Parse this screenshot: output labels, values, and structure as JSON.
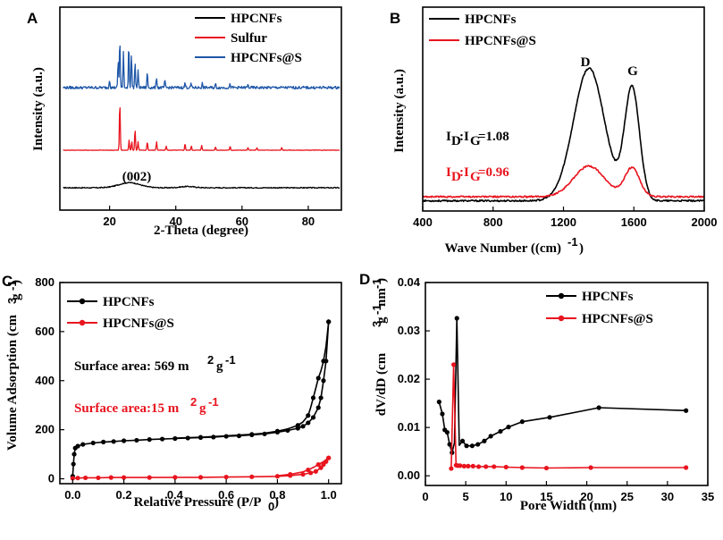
{
  "colors": {
    "black": "#000000",
    "red": "#e8141e",
    "blue": "#1f57a8"
  },
  "chart_data": [
    {
      "panel": "A",
      "type": "line",
      "xlabel": "2-Theta (degree)",
      "ylabel": "Intensity (a.u.)",
      "xlim": [
        5,
        90
      ],
      "x_ticks": [
        20,
        40,
        60,
        80
      ],
      "legend": [
        "HPCNFs",
        "Sulfur",
        "HPCNFs@S"
      ],
      "annotation": "(002)",
      "series": [
        {
          "name": "HPCNFs",
          "color": "#000000",
          "offset": 0,
          "peaks": [
            [
              26,
              6,
              4.5
            ],
            [
              43.5,
              1.5,
              3
            ]
          ],
          "noise": 1.2
        },
        {
          "name": "Sulfur",
          "color": "#e8141e",
          "offset": 42,
          "peaks": [
            [
              23.1,
              58
            ],
            [
              25.9,
              12
            ],
            [
              27.7,
              25
            ],
            [
              26.7,
              10
            ],
            [
              28.6,
              10
            ],
            [
              31.4,
              10
            ],
            [
              34.2,
              10
            ],
            [
              37.1,
              5
            ],
            [
              42.8,
              8
            ],
            [
              44.7,
              5
            ],
            [
              47.8,
              6
            ],
            [
              52,
              4
            ],
            [
              56.4,
              5
            ],
            [
              61.8,
              3
            ],
            [
              64.5,
              3
            ],
            [
              72,
              3
            ]
          ],
          "noise": 0.5
        },
        {
          "name": "HPCNFs@S",
          "color": "#1f57a8",
          "offset": 112,
          "peaks": [
            [
              23.1,
              58
            ],
            [
              25.8,
              52
            ],
            [
              22.6,
              32
            ],
            [
              24.2,
              42
            ],
            [
              26.6,
              40
            ],
            [
              27.7,
              30
            ],
            [
              28.6,
              20
            ],
            [
              31.4,
              18
            ],
            [
              34.2,
              12
            ],
            [
              20,
              10
            ],
            [
              36.7,
              8
            ],
            [
              42.8,
              6
            ],
            [
              44.6,
              5
            ],
            [
              48,
              5
            ],
            [
              52,
              4
            ],
            [
              56.4,
              4
            ],
            [
              61.8,
              3
            ]
          ],
          "noise": 3.2
        }
      ]
    },
    {
      "panel": "B",
      "type": "line",
      "xlabel": "Wave Number (cm-1)",
      "ylabel": "Intensity (a.u.)",
      "xlim": [
        400,
        2000
      ],
      "x_ticks": [
        400,
        800,
        1200,
        1600,
        2000
      ],
      "legend": [
        "HPCNFs",
        "HPCNFs@S"
      ],
      "D_label": "D",
      "G_label": "G",
      "ratio_black": "1.08",
      "ratio_red": "0.96",
      "series": [
        {
          "name": "HPCNFs",
          "color": "#000000",
          "D": [
            1345,
            130
          ],
          "G": [
            1590,
            110
          ]
        },
        {
          "name": "HPCNFs@S",
          "color": "#e8141e",
          "D": [
            1345,
            30
          ],
          "G": [
            1590,
            28
          ]
        }
      ]
    },
    {
      "panel": "C",
      "type": "line",
      "xlabel": "Relative Pressure (P/P0)",
      "ylabel": "Volume Adsorption",
      "xlim": [
        -0.05,
        1.05
      ],
      "ylim": [
        -20,
        800
      ],
      "x_ticks": [
        0.0,
        0.2,
        0.4,
        0.6,
        0.8,
        1.0
      ],
      "y_ticks": [
        0,
        200,
        400,
        600,
        800
      ],
      "legend": [
        "HPCNFs",
        "HPCNFs@S"
      ],
      "area_black": "Surface area: 569 m",
      "area_black_unit": "g",
      "area_red": "Surface area:15 m",
      "area_red_unit": "g",
      "series": [
        {
          "name": "HPCNFs adsorption",
          "color": "#000000",
          "x": [
            0.0,
            0.003,
            0.006,
            0.01,
            0.02,
            0.04,
            0.08,
            0.12,
            0.16,
            0.2,
            0.25,
            0.3,
            0.35,
            0.4,
            0.45,
            0.5,
            0.55,
            0.6,
            0.65,
            0.7,
            0.75,
            0.8,
            0.84,
            0.88,
            0.9,
            0.92,
            0.94,
            0.96,
            0.97,
            0.98,
            0.99,
            1.0
          ],
          "y": [
            10,
            60,
            100,
            125,
            133,
            140,
            146,
            150,
            152,
            155,
            157,
            160,
            162,
            164,
            166,
            168,
            170,
            173,
            175,
            179,
            183,
            190,
            197,
            206,
            214,
            228,
            250,
            290,
            330,
            400,
            480,
            640
          ]
        },
        {
          "name": "HPCNFs desorption",
          "color": "#000000",
          "x": [
            1.0,
            0.99,
            0.98,
            0.97,
            0.96,
            0.95,
            0.94,
            0.93,
            0.92,
            0.9,
            0.88,
            0.84,
            0.8,
            0.75,
            0.7,
            0.6,
            0.5,
            0.4
          ],
          "y": [
            640,
            540,
            480,
            440,
            410,
            370,
            330,
            290,
            258,
            232,
            218,
            203,
            194,
            186,
            181,
            175,
            169,
            166
          ]
        },
        {
          "name": "HPCNFs@S adsorption",
          "color": "#e8141e",
          "x": [
            0.0,
            0.02,
            0.05,
            0.1,
            0.15,
            0.2,
            0.3,
            0.4,
            0.5,
            0.6,
            0.7,
            0.8,
            0.85,
            0.9,
            0.93,
            0.95,
            0.97,
            0.98,
            0.99,
            1.0
          ],
          "y": [
            2,
            3,
            4,
            4,
            5,
            5,
            5,
            6,
            6,
            7,
            8,
            10,
            13,
            18,
            24,
            30,
            45,
            58,
            70,
            85
          ]
        },
        {
          "name": "HPCNFs@S desorption",
          "color": "#e8141e",
          "x": [
            1.0,
            0.98,
            0.96,
            0.94,
            0.92,
            0.9,
            0.85,
            0.8
          ],
          "y": [
            85,
            70,
            58,
            46,
            36,
            28,
            18,
            12
          ]
        }
      ]
    },
    {
      "panel": "D",
      "type": "line",
      "xlabel": "Pore Width (nm)",
      "ylabel": "dV/dD",
      "xlim": [
        0,
        35
      ],
      "ylim": [
        -0.002,
        0.04
      ],
      "x_ticks": [
        0,
        5,
        10,
        15,
        20,
        25,
        30,
        35
      ],
      "y_ticks": [
        0.0,
        0.01,
        0.02,
        0.03,
        0.04
      ],
      "y_tick_labels": [
        "0.00",
        "0.01",
        "0.02",
        "0.03",
        "0.04"
      ],
      "legend": [
        "HPCNFs",
        "HPCNFs@S"
      ],
      "series": [
        {
          "name": "HPCNFs",
          "color": "#000000",
          "x": [
            1.7,
            2.1,
            2.4,
            2.7,
            3.0,
            3.3,
            3.6,
            3.9,
            4.2,
            4.6,
            5.1,
            5.8,
            6.5,
            7.3,
            8.1,
            9.3,
            10.3,
            12,
            15.4,
            21.5,
            32.3
          ],
          "y": [
            0.0153,
            0.0128,
            0.0095,
            0.009,
            0.0065,
            0.0048,
            0.0068,
            0.0326,
            0.0063,
            0.0072,
            0.0062,
            0.0062,
            0.0065,
            0.0072,
            0.0082,
            0.0092,
            0.0101,
            0.0112,
            0.0121,
            0.0141,
            0.0135
          ],
          "markers": [
            0,
            1,
            2,
            3,
            4,
            5,
            7,
            9,
            10,
            11,
            12,
            13,
            14,
            15,
            16,
            17,
            18,
            19,
            20
          ]
        },
        {
          "name": "HPCNFs@S",
          "color": "#e8141e",
          "x": [
            3.2,
            3.5,
            3.8,
            4.0,
            4.3,
            4.8,
            5.3,
            5.9,
            6.6,
            7.5,
            8.5,
            10,
            12,
            15,
            20.5,
            32.3
          ],
          "y": [
            0.0015,
            0.023,
            0.0022,
            0.0021,
            0.0021,
            0.002,
            0.002,
            0.002,
            0.0019,
            0.0019,
            0.0019,
            0.0018,
            0.0017,
            0.0016,
            0.0017,
            0.0017
          ]
        }
      ]
    }
  ]
}
